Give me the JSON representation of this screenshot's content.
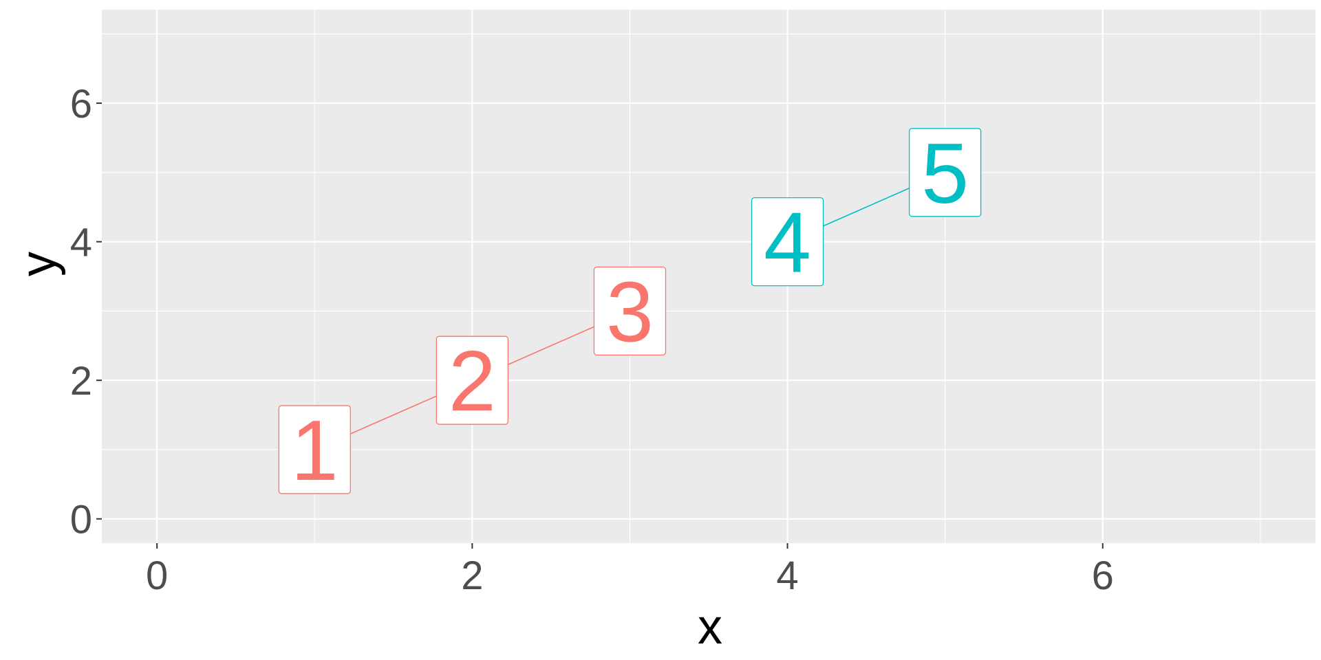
{
  "chart_data": {
    "type": "line",
    "xlabel": "x",
    "ylabel": "y",
    "xlim": [
      -0.35,
      7.35
    ],
    "ylim": [
      -0.35,
      7.35
    ],
    "x_ticks": [
      0,
      2,
      4,
      6
    ],
    "y_ticks": [
      0,
      2,
      4,
      6
    ],
    "x_minor": [
      1,
      3,
      5,
      7
    ],
    "y_minor": [
      1,
      3,
      5,
      7
    ],
    "grid": true,
    "legend": "none",
    "series": [
      {
        "color": "#F8766D",
        "points": [
          {
            "x": 1,
            "y": 1,
            "label": "1"
          },
          {
            "x": 2,
            "y": 2,
            "label": "2"
          },
          {
            "x": 3,
            "y": 3,
            "label": "3"
          }
        ]
      },
      {
        "color": "#00BFC4",
        "points": [
          {
            "x": 4,
            "y": 4,
            "label": "4"
          },
          {
            "x": 5,
            "y": 5,
            "label": "5"
          }
        ]
      }
    ],
    "colors": {
      "panel_background": "#EBEBEB",
      "grid": "#FFFFFF",
      "tick": "#333333",
      "tick_label": "#4D4D4D",
      "axis_title": "#000000"
    }
  }
}
